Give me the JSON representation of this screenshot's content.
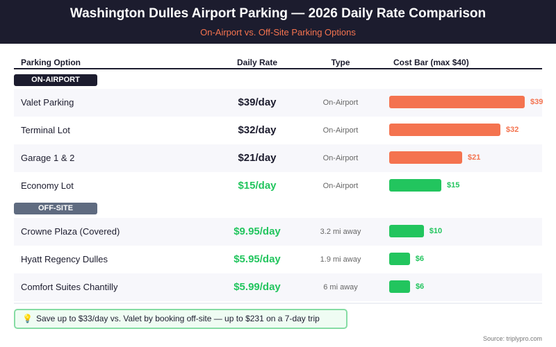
{
  "header": {
    "title": "Washington Dulles Airport Parking — 2026 Daily Rate Comparison",
    "subtitle": "On-Airport vs. Off-Site Parking Options"
  },
  "columns": [
    "Parking Option",
    "Daily Rate",
    "Type",
    "Cost Bar (max $40)"
  ],
  "colors": {
    "expensive": "#f4734f",
    "cheap": "#22c55e",
    "dark": "#1c1c2e",
    "offsite_badge": "#5f6b80"
  },
  "chart_data": {
    "type": "bar",
    "orientation": "horizontal",
    "xlim": [
      0,
      40
    ],
    "sections": [
      {
        "label": "ON-AIRPORT",
        "rows": [
          {
            "name": "Valet Parking",
            "rate": "$39/day",
            "type": "On-Airport",
            "value": 39,
            "bar_label": "$39",
            "color": "#f4734f"
          },
          {
            "name": "Terminal Lot",
            "rate": "$32/day",
            "type": "On-Airport",
            "value": 32,
            "bar_label": "$32",
            "color": "#f4734f"
          },
          {
            "name": "Garage 1 & 2",
            "rate": "$21/day",
            "type": "On-Airport",
            "value": 21,
            "bar_label": "$21",
            "color": "#f4734f"
          },
          {
            "name": "Economy Lot",
            "rate": "$15/day",
            "type": "On-Airport",
            "value": 15,
            "bar_label": "$15",
            "color": "#22c55e"
          }
        ]
      },
      {
        "label": "OFF-SITE",
        "rows": [
          {
            "name": "Crowne Plaza (Covered)",
            "rate": "$9.95/day",
            "type": "3.2 mi away",
            "value": 9.95,
            "bar_label": "$10",
            "color": "#22c55e"
          },
          {
            "name": "Hyatt Regency Dulles",
            "rate": "$5.95/day",
            "type": "1.9 mi away",
            "value": 5.95,
            "bar_label": "$6",
            "color": "#22c55e"
          },
          {
            "name": "Comfort Suites Chantilly",
            "rate": "$5.99/day",
            "type": "6 mi away",
            "value": 5.99,
            "bar_label": "$6",
            "color": "#22c55e"
          }
        ]
      }
    ]
  },
  "callout": {
    "icon": "lightbulb-icon",
    "text": "Save up to $33/day vs. Valet by booking off-site — up to $231 on a 7-day trip"
  },
  "source": "Source: triplypro.com"
}
